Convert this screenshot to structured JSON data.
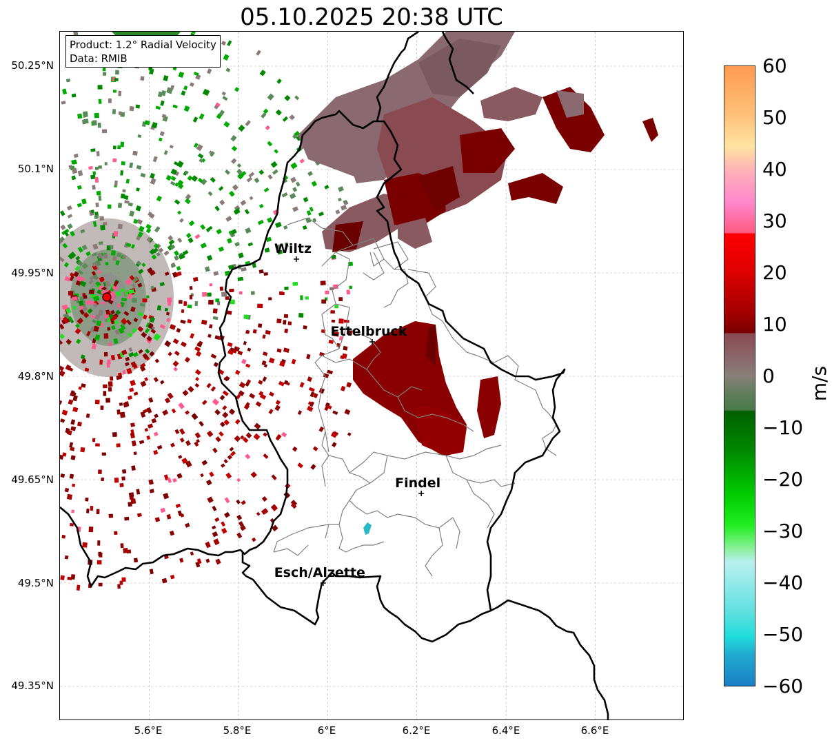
{
  "title": "05.10.2025 20:38 UTC",
  "info_box": {
    "product": "Product: 1.2° Radial Velocity",
    "data_source": "Data: RMIB"
  },
  "map": {
    "lon_range": [
      5.4,
      6.8
    ],
    "lat_range": [
      49.3,
      50.3
    ],
    "grid": true,
    "lat_ticks": [
      "50.25°N",
      "50.1°N",
      "49.95°N",
      "49.8°N",
      "49.65°N",
      "49.5°N",
      "49.35°N"
    ],
    "lon_ticks": [
      "5.6°E",
      "5.8°E",
      "6°E",
      "6.2°E",
      "6.4°E",
      "6.6°E"
    ],
    "radar_site": {
      "lon": 5.505,
      "lat": 49.915
    },
    "cities": [
      {
        "name": "Wiltz",
        "lon": 5.93,
        "lat": 49.97
      },
      {
        "name": "Ettelbruck",
        "lon": 6.1,
        "lat": 49.85
      },
      {
        "name": "Findel",
        "lon": 6.21,
        "lat": 49.63
      },
      {
        "name": "Esch/Alzette",
        "lon": 5.99,
        "lat": 49.5
      }
    ]
  },
  "colorbar": {
    "label": "m/s",
    "min": -60,
    "max": 60,
    "ticks": [
      "60",
      "50",
      "40",
      "30",
      "20",
      "10",
      "0",
      "−10",
      "−20",
      "−30",
      "−40",
      "−50",
      "−60"
    ]
  },
  "colors": {
    "inbound_strong": "#1a7fc4",
    "inbound_cyan": "#2ee0e0",
    "inbound_green": "#00cc00",
    "near_zero_green": "#5a8a5a",
    "zero_gray": "#8a7a78",
    "near_zero_mauve": "#8a5a62",
    "outbound_darkred": "#7a0000",
    "outbound_red": "#ee0000",
    "outbound_pink": "#ff88cc",
    "outbound_orange": "#ffa050"
  }
}
